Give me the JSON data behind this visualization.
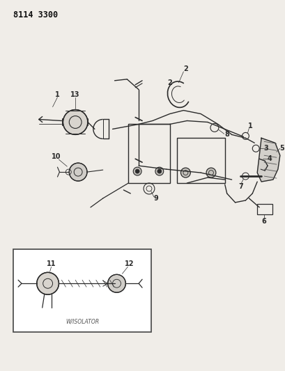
{
  "title": "8114 3300",
  "bg": "#f0ede8",
  "lc": "#2a2a2a",
  "fig_w": 4.1,
  "fig_h": 5.33,
  "dpi": 100,
  "inset_label": "W/ISOLATOR"
}
